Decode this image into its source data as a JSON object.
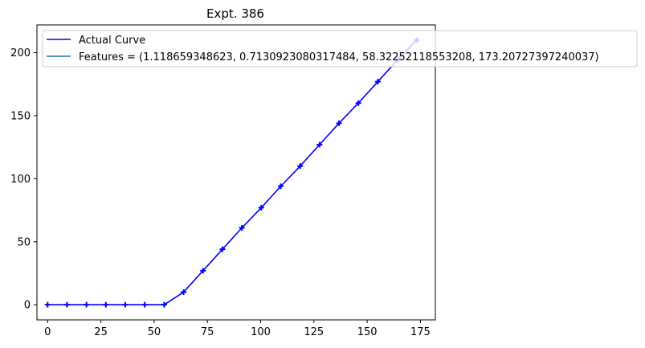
{
  "chart_data": {
    "type": "line",
    "title": "Expt. 386",
    "xlabel": "",
    "ylabel": "",
    "xlim": [
      -5,
      182
    ],
    "ylim": [
      -12,
      222
    ],
    "x_ticks": [
      0,
      25,
      50,
      75,
      100,
      125,
      150,
      175
    ],
    "y_ticks": [
      0,
      50,
      100,
      150,
      200
    ],
    "grid": false,
    "legend_placement": "top-left",
    "series": [
      {
        "name": "Actual Curve",
        "color": "#0000ff",
        "marker": "plus",
        "x": [
          0,
          9.12,
          18.24,
          27.35,
          36.47,
          45.59,
          54.71,
          63.83,
          72.94,
          82.06,
          91.18,
          100.3,
          109.42,
          118.54,
          127.65,
          136.77,
          145.89,
          155.01,
          164.13,
          173.24
        ],
        "y": [
          0,
          0,
          0,
          0,
          0,
          0,
          0,
          10,
          27,
          44,
          61,
          77,
          94,
          110,
          127,
          144,
          160,
          177,
          194,
          210
        ]
      },
      {
        "name": "Features = (1.118659348623, 0.7130923080317484, 58.32252118553208, 173.20727397240037)",
        "color": "#1f77b4",
        "x": [],
        "y": []
      }
    ]
  }
}
